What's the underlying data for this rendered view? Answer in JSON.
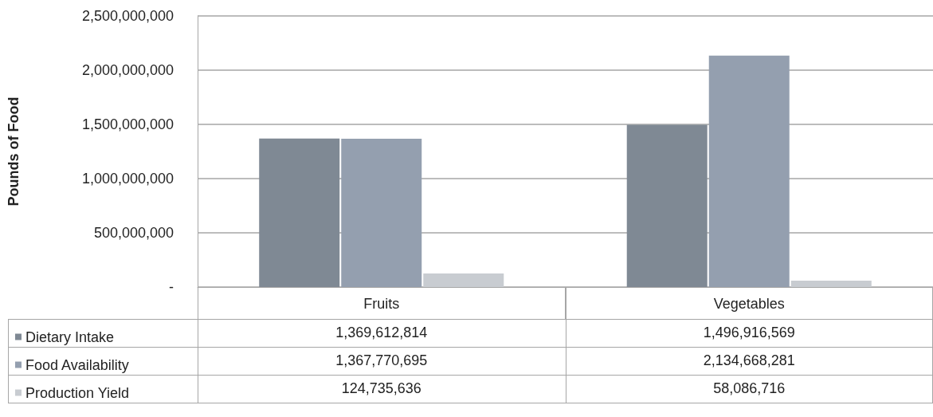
{
  "chart_data": {
    "type": "bar",
    "ylabel": "Pounds of Food",
    "categories": [
      "Fruits",
      "Vegetables"
    ],
    "series": [
      {
        "name": "Dietary Intake",
        "color": "#7f8994",
        "values": [
          1369612814,
          1496916569
        ],
        "value_labels": [
          "1,369,612,814",
          "1,496,916,569"
        ]
      },
      {
        "name": "Food Availability",
        "color": "#949faf",
        "values": [
          1367770695,
          2134668281
        ],
        "value_labels": [
          "1,367,770,695",
          "2,134,668,281"
        ]
      },
      {
        "name": "Production Yield",
        "color": "#c8ccd1",
        "values": [
          124735636,
          58086716
        ],
        "value_labels": [
          "124,735,636",
          "58,086,716"
        ]
      }
    ],
    "ylim": [
      0,
      2500000000
    ],
    "yticks": [
      {
        "value": 0,
        "label": "-"
      },
      {
        "value": 500000000,
        "label": "500,000,000"
      },
      {
        "value": 1000000000,
        "label": "1,000,000,000"
      },
      {
        "value": 1500000000,
        "label": "1,500,000,000"
      },
      {
        "value": 2000000000,
        "label": "2,000,000,000"
      },
      {
        "value": 2500000000,
        "label": "2,500,000,000"
      }
    ],
    "grid": "y",
    "legend": "bottom left"
  }
}
